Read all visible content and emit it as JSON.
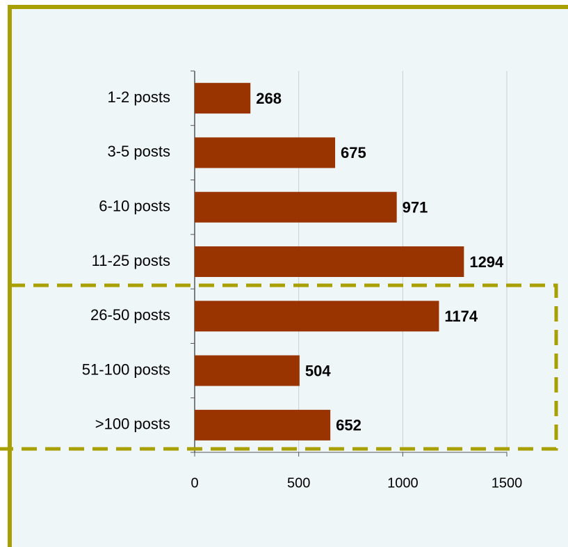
{
  "chart_data": {
    "type": "bar",
    "orientation": "horizontal",
    "categories": [
      "1-2 posts",
      "3-5 posts",
      "6-10 posts",
      "11-25 posts",
      "26-50 posts",
      "51-100 posts",
      ">100 posts"
    ],
    "values": [
      268,
      675,
      971,
      1294,
      1174,
      504,
      652
    ],
    "color": "#993300",
    "xlim": [
      0,
      1500
    ],
    "xticks": [
      0,
      500,
      1000,
      1500
    ],
    "grid": true
  }
}
